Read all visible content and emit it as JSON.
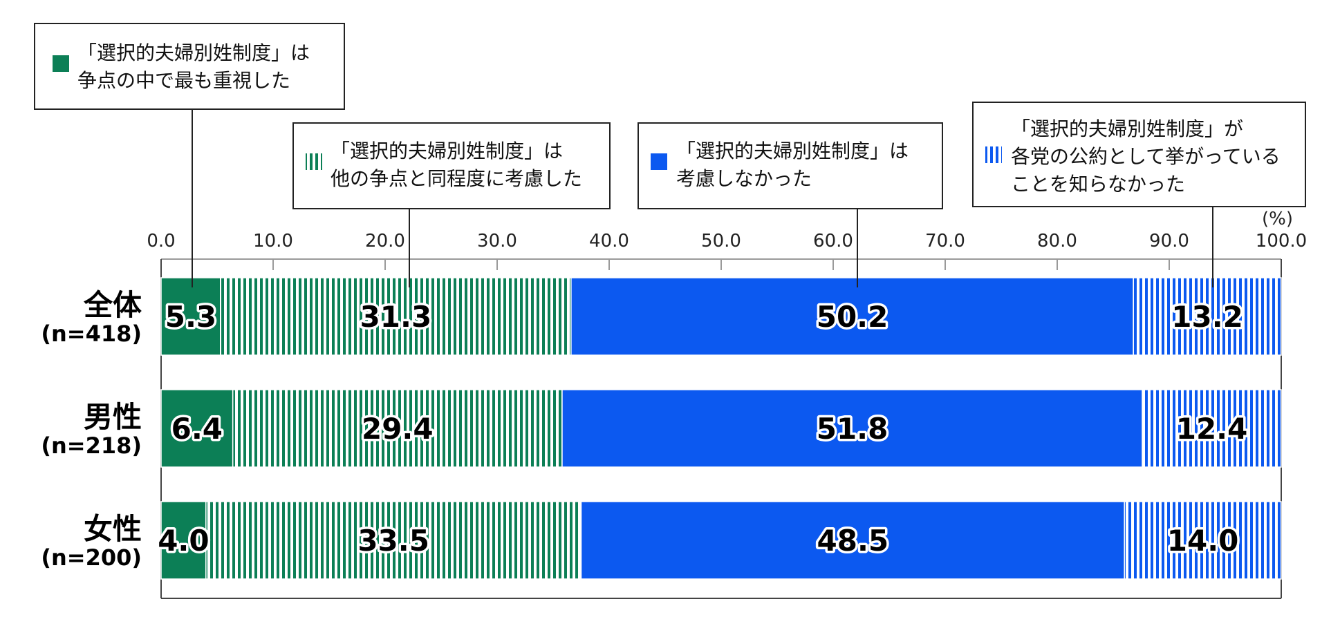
{
  "chart_data": {
    "type": "bar",
    "orientation": "horizontal",
    "stacked": true,
    "unit_label": "(%)",
    "xlim": [
      0,
      100
    ],
    "x_ticks": [
      "0.0",
      "10.0",
      "20.0",
      "30.0",
      "40.0",
      "50.0",
      "60.0",
      "70.0",
      "80.0",
      "90.0",
      "100.0"
    ],
    "grid": false,
    "categories": [
      {
        "name": "全体",
        "n": "(n=418)"
      },
      {
        "name": "男性",
        "n": "(n=218)"
      },
      {
        "name": "女性",
        "n": "(n=200)"
      }
    ],
    "series": [
      {
        "name_lines": [
          "「選択的夫婦別姓制度」は",
          "争点の中で最も重視した"
        ],
        "color": "#0c7f56",
        "pattern": "solid",
        "values": [
          5.3,
          6.4,
          4.0
        ],
        "labels": [
          "5.3",
          "6.4",
          "4.0"
        ]
      },
      {
        "name_lines": [
          "「選択的夫婦別姓制度」は",
          "他の争点と同程度に考慮した"
        ],
        "color": "#0c7f56",
        "pattern": "stripes",
        "values": [
          31.3,
          29.4,
          33.5
        ],
        "labels": [
          "31.3",
          "29.4",
          "33.5"
        ]
      },
      {
        "name_lines": [
          "「選択的夫婦別姓制度」は",
          "考慮しなかった"
        ],
        "color": "#0c59f0",
        "pattern": "solid",
        "values": [
          50.2,
          51.8,
          48.5
        ],
        "labels": [
          "50.2",
          "51.8",
          "48.5"
        ]
      },
      {
        "name_lines": [
          "「選択的夫婦別姓制度」が",
          "各党の公約として挙がっている",
          "ことを知らなかった"
        ],
        "color": "#0c59f0",
        "pattern": "stripes",
        "values": [
          13.2,
          12.4,
          14.0
        ],
        "labels": [
          "13.2",
          "12.4",
          "14.0"
        ]
      }
    ]
  }
}
